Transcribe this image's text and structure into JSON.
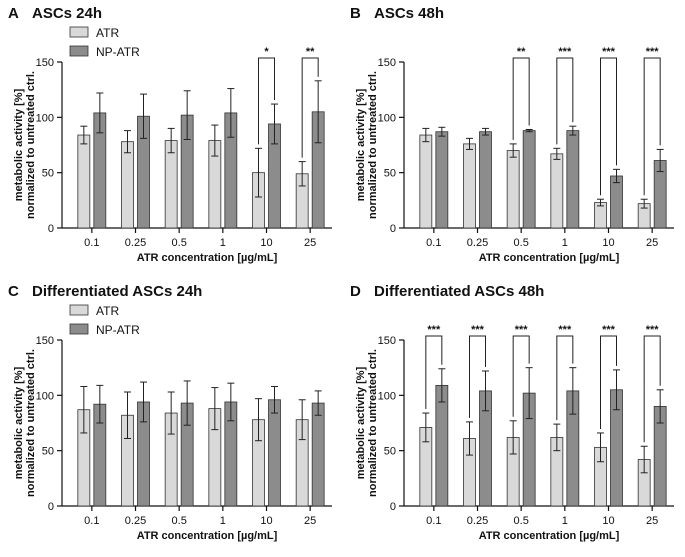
{
  "chart_data": [
    {
      "type": "bar",
      "panel_label": "A",
      "title": "ASCs 24h",
      "categories": [
        "0.1",
        "0.25",
        "0.5",
        "1",
        "10",
        "25"
      ],
      "series": [
        {
          "name": "ATR",
          "values": [
            84,
            78,
            79,
            79,
            50,
            49
          ],
          "errors": [
            8,
            10,
            11,
            14,
            22,
            11
          ],
          "color": "#d9d9d9"
        },
        {
          "name": "NP-ATR",
          "values": [
            104,
            101,
            102,
            104,
            94,
            105
          ],
          "errors": [
            18,
            20,
            22,
            22,
            18,
            28
          ],
          "color": "#8c8c8c"
        }
      ],
      "significance": [
        "",
        "",
        "",
        "",
        "*",
        "**"
      ],
      "legend_entries": [
        "ATR",
        "NP-ATR"
      ],
      "legend_position": "top-left",
      "xlabel": "ATR concentration [µg/mL]",
      "ylabel": [
        "metabolic activity [%]",
        "normalized to untreated ctrl."
      ],
      "ylim": [
        0,
        150
      ],
      "yticks": [
        "0",
        "50",
        "100",
        "150"
      ]
    },
    {
      "type": "bar",
      "panel_label": "B",
      "title": "ASCs 48h",
      "categories": [
        "0.1",
        "0.25",
        "0.5",
        "1",
        "10",
        "25"
      ],
      "series": [
        {
          "name": "ATR",
          "values": [
            84,
            76,
            70,
            67,
            23,
            22
          ],
          "errors": [
            6,
            5,
            6,
            5,
            3,
            4
          ],
          "color": "#d9d9d9"
        },
        {
          "name": "NP-ATR",
          "values": [
            87,
            87,
            88,
            88,
            47,
            61
          ],
          "errors": [
            4,
            3,
            1,
            4,
            6,
            10
          ],
          "color": "#8c8c8c"
        }
      ],
      "significance": [
        "",
        "",
        "**",
        "***",
        "***",
        "***"
      ],
      "xlabel": "ATR concentration [µg/mL]",
      "ylabel": [
        "metabolic activity [%]",
        "normalized to untreated ctrl."
      ],
      "ylim": [
        0,
        150
      ],
      "yticks": [
        "0",
        "50",
        "100",
        "150"
      ]
    },
    {
      "type": "bar",
      "panel_label": "C",
      "title": "Differentiated ASCs 24h",
      "categories": [
        "0.1",
        "0.25",
        "0.5",
        "1",
        "10",
        "25"
      ],
      "series": [
        {
          "name": "ATR",
          "values": [
            87,
            82,
            84,
            88,
            78,
            78
          ],
          "errors": [
            21,
            21,
            19,
            19,
            19,
            18
          ],
          "color": "#d9d9d9"
        },
        {
          "name": "NP-ATR",
          "values": [
            92,
            94,
            93,
            94,
            96,
            93
          ],
          "errors": [
            17,
            18,
            20,
            17,
            12,
            11
          ],
          "color": "#8c8c8c"
        }
      ],
      "significance": [
        "",
        "",
        "",
        "",
        "",
        ""
      ],
      "legend_entries": [
        "ATR",
        "NP-ATR"
      ],
      "legend_position": "top-left",
      "xlabel": "ATR concentration [µg/mL]",
      "ylabel": [
        "metabolic activity [%]",
        "normalized to untreated ctrl."
      ],
      "ylim": [
        0,
        150
      ],
      "yticks": [
        "0",
        "50",
        "100",
        "150"
      ]
    },
    {
      "type": "bar",
      "panel_label": "D",
      "title": "Differentiated ASCs 48h",
      "categories": [
        "0.1",
        "0.25",
        "0.5",
        "1",
        "10",
        "25"
      ],
      "series": [
        {
          "name": "ATR",
          "values": [
            71,
            61,
            62,
            62,
            53,
            42
          ],
          "errors": [
            13,
            15,
            15,
            12,
            13,
            12
          ],
          "color": "#d9d9d9"
        },
        {
          "name": "NP-ATR",
          "values": [
            109,
            104,
            102,
            104,
            105,
            90
          ],
          "errors": [
            15,
            18,
            23,
            21,
            18,
            15
          ],
          "color": "#8c8c8c"
        }
      ],
      "significance": [
        "***",
        "***",
        "***",
        "***",
        "***",
        "***"
      ],
      "xlabel": "ATR concentration [µg/mL]",
      "ylabel": [
        "metabolic activity [%]",
        "normalized to untreated ctrl."
      ],
      "ylim": [
        0,
        150
      ],
      "yticks": [
        "0",
        "50",
        "100",
        "150"
      ]
    }
  ]
}
